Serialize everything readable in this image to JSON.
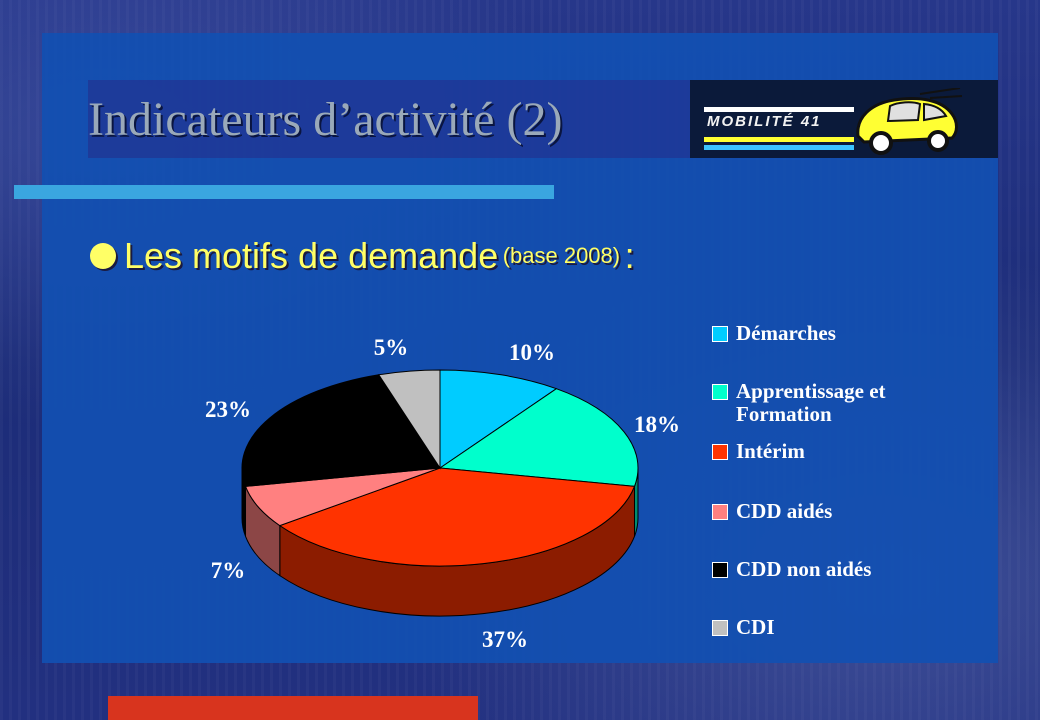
{
  "slide": {
    "title": "Indicateurs d’activité (2)",
    "bullet": {
      "main": "Les motifs de demande",
      "sub": "(base 2008)",
      "colon": ":"
    },
    "logo": {
      "text": "MOBILITÉ 41",
      "icon": "car-icon"
    }
  },
  "colors": {
    "panel": "#1250b2",
    "title_text": "#9aa9b9",
    "bullet_text": "#ffff66",
    "accent_red": "#d8341e"
  },
  "chart_data": {
    "type": "pie",
    "title": "",
    "style": "3d",
    "legend_position": "right",
    "slices": [
      {
        "label": "Démarches",
        "value": 10,
        "display": "10%",
        "color": "#00ccff"
      },
      {
        "label": "Apprentissage et Formation",
        "value": 18,
        "display": "18%",
        "color": "#00ffcc"
      },
      {
        "label": "Intérim",
        "value": 37,
        "display": "37%",
        "color": "#ff3300"
      },
      {
        "label": "CDD aidés",
        "value": 7,
        "display": "7%",
        "color": "#ff8080"
      },
      {
        "label": "CDD non aidés",
        "value": 23,
        "display": "23%",
        "color": "#000000"
      },
      {
        "label": "CDI",
        "value": 5,
        "display": "5%",
        "color": "#c0c0c0"
      }
    ],
    "legend": [
      {
        "line1": "Démarches",
        "line2": ""
      },
      {
        "line1": "Apprentissage et",
        "line2": "Formation"
      },
      {
        "line1": "Intérim",
        "line2": ""
      },
      {
        "line1": "CDD aidés",
        "line2": ""
      },
      {
        "line1": "CDD non aidés",
        "line2": ""
      },
      {
        "line1": "CDI",
        "line2": ""
      }
    ]
  }
}
